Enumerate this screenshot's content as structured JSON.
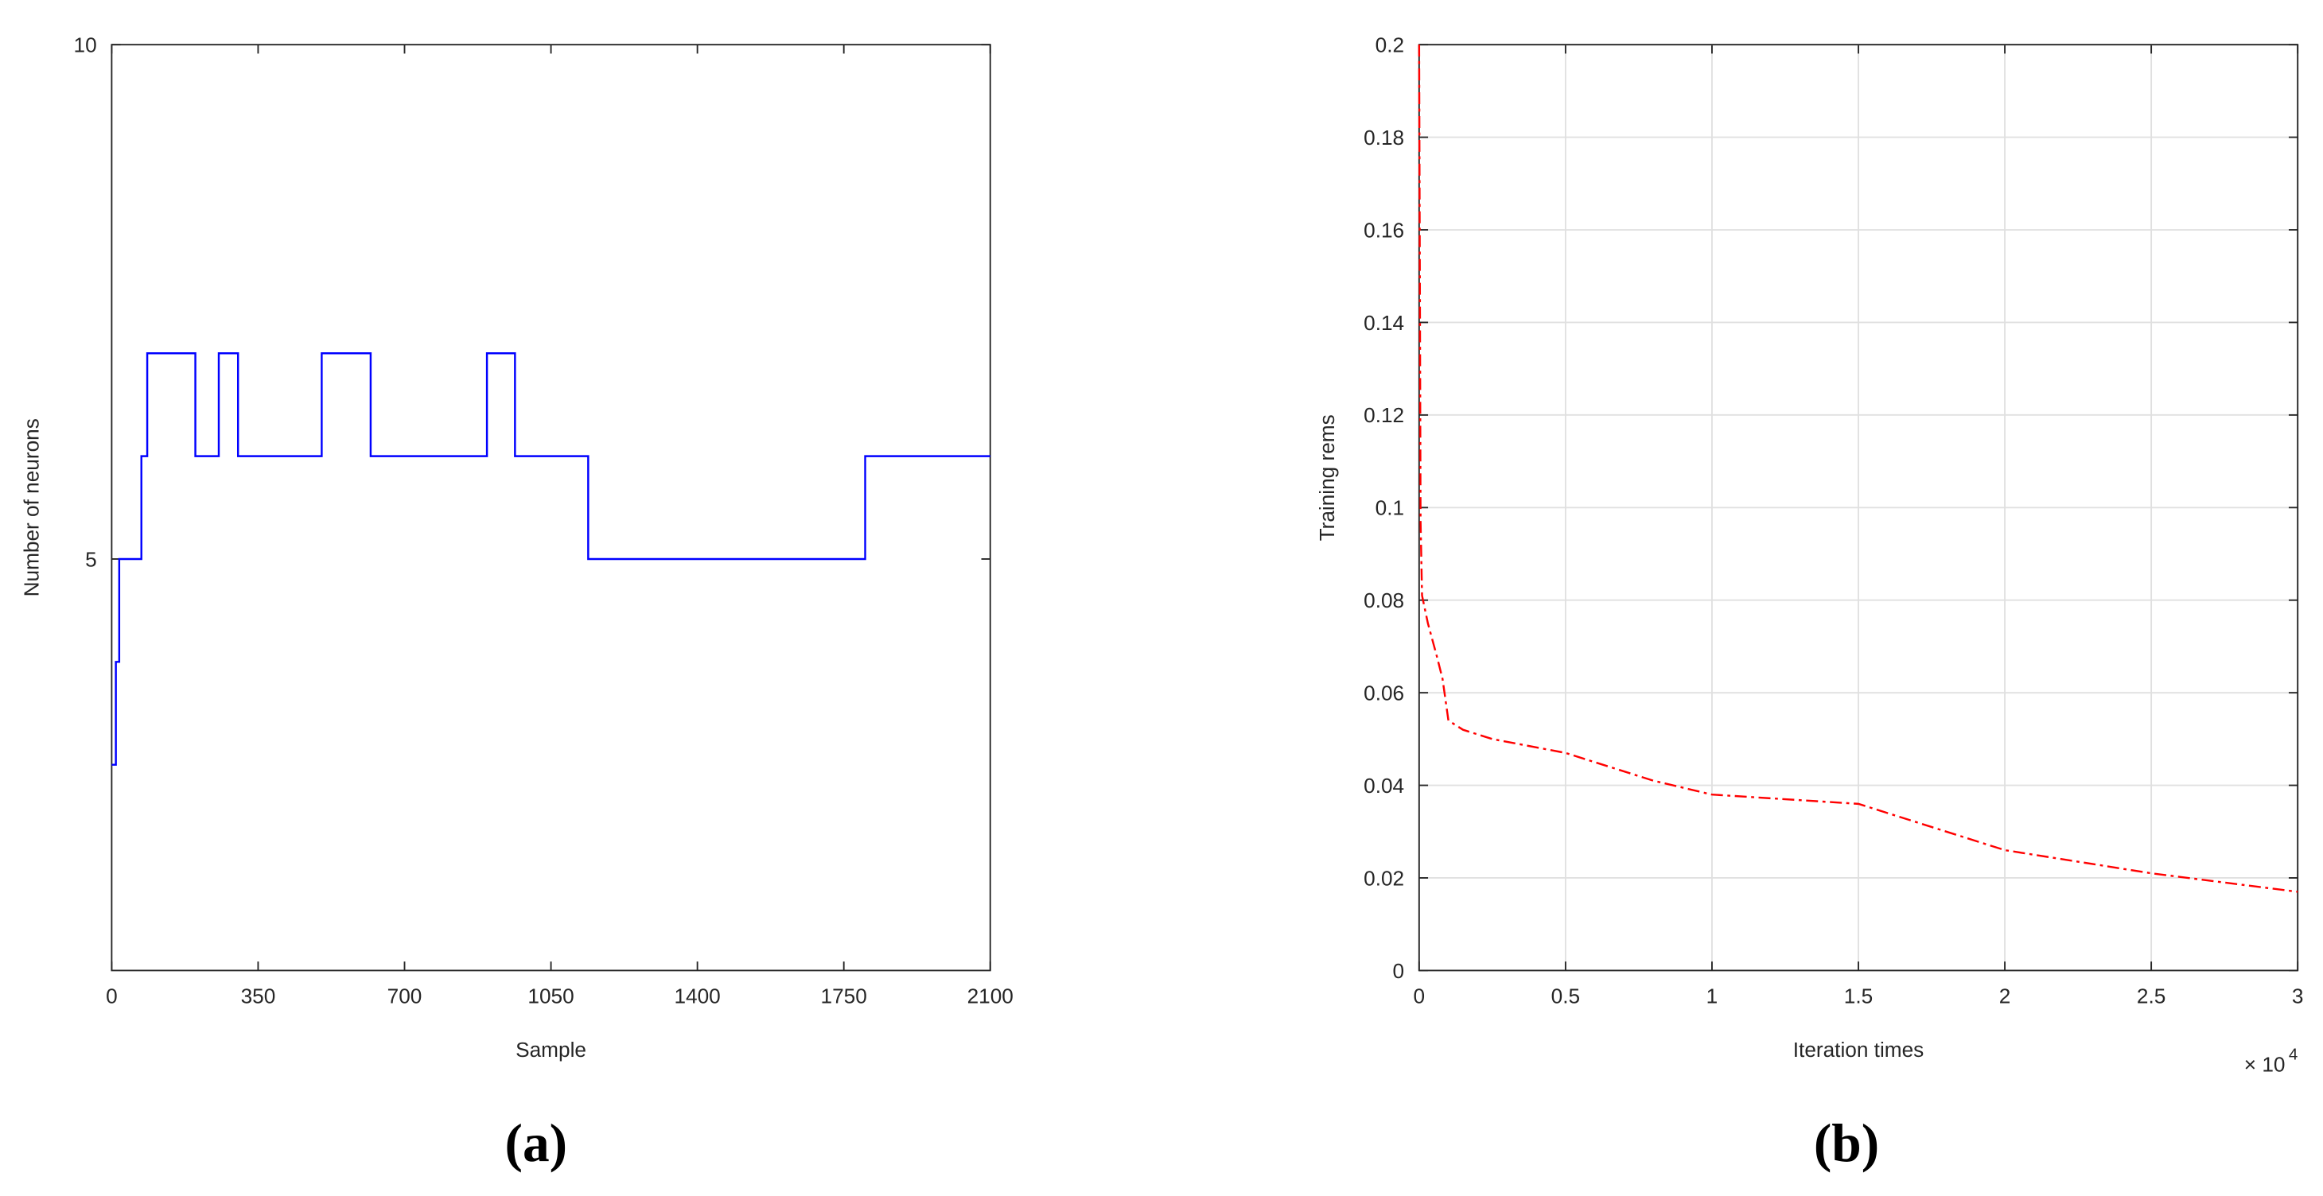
{
  "chart_data": [
    {
      "type": "line",
      "panel_label": "(a)",
      "x_label": "Sample",
      "y_label": "Number of neurons",
      "xlim": [
        0,
        2100
      ],
      "xticks": [
        0,
        350,
        700,
        1050,
        1400,
        1750,
        2100
      ],
      "ylim": [
        1,
        10
      ],
      "yticks": [
        5,
        10
      ],
      "grid": false,
      "x": [
        0,
        10,
        10,
        18,
        18,
        71,
        71,
        85,
        85,
        200,
        200,
        256,
        256,
        302,
        302,
        502,
        502,
        619,
        619,
        897,
        897,
        964,
        964,
        1139,
        1139,
        1801,
        1801,
        2100
      ],
      "series": [
        {
          "color": "#0000ff",
          "dash": "solid",
          "values": [
            3,
            3,
            4,
            4,
            5,
            5,
            6,
            6,
            7,
            7,
            6,
            6,
            7,
            7,
            6,
            6,
            7,
            7,
            6,
            6,
            7,
            7,
            6,
            6,
            5,
            5,
            6,
            6
          ]
        }
      ]
    },
    {
      "type": "line",
      "panel_label": "(b)",
      "x_label": "Iteration times",
      "y_label": "Training rems",
      "x_scale_label": "× 10",
      "x_scale_exponent": "4",
      "xlim": [
        0,
        3
      ],
      "xticks": [
        0,
        0.5,
        1,
        1.5,
        2,
        2.5,
        3
      ],
      "ylim": [
        0,
        0.2
      ],
      "yticks": [
        0,
        0.02,
        0.04,
        0.06,
        0.08,
        0.1,
        0.12,
        0.14,
        0.16,
        0.18,
        0.2
      ],
      "grid": true,
      "x": [
        0,
        0.003,
        0.005,
        0.01,
        0.03,
        0.06,
        0.08,
        0.1,
        0.15,
        0.25,
        0.5,
        0.6,
        0.8,
        1.0,
        1.25,
        1.5,
        1.75,
        2.0,
        2.5,
        3.0
      ],
      "series": [
        {
          "color": "#ff0000",
          "dash": "dash-dot",
          "values": [
            0.2,
            0.14,
            0.097,
            0.081,
            0.075,
            0.068,
            0.063,
            0.054,
            0.052,
            0.05,
            0.047,
            0.045,
            0.041,
            0.038,
            0.037,
            0.036,
            0.031,
            0.026,
            0.021,
            0.017
          ]
        }
      ]
    }
  ]
}
